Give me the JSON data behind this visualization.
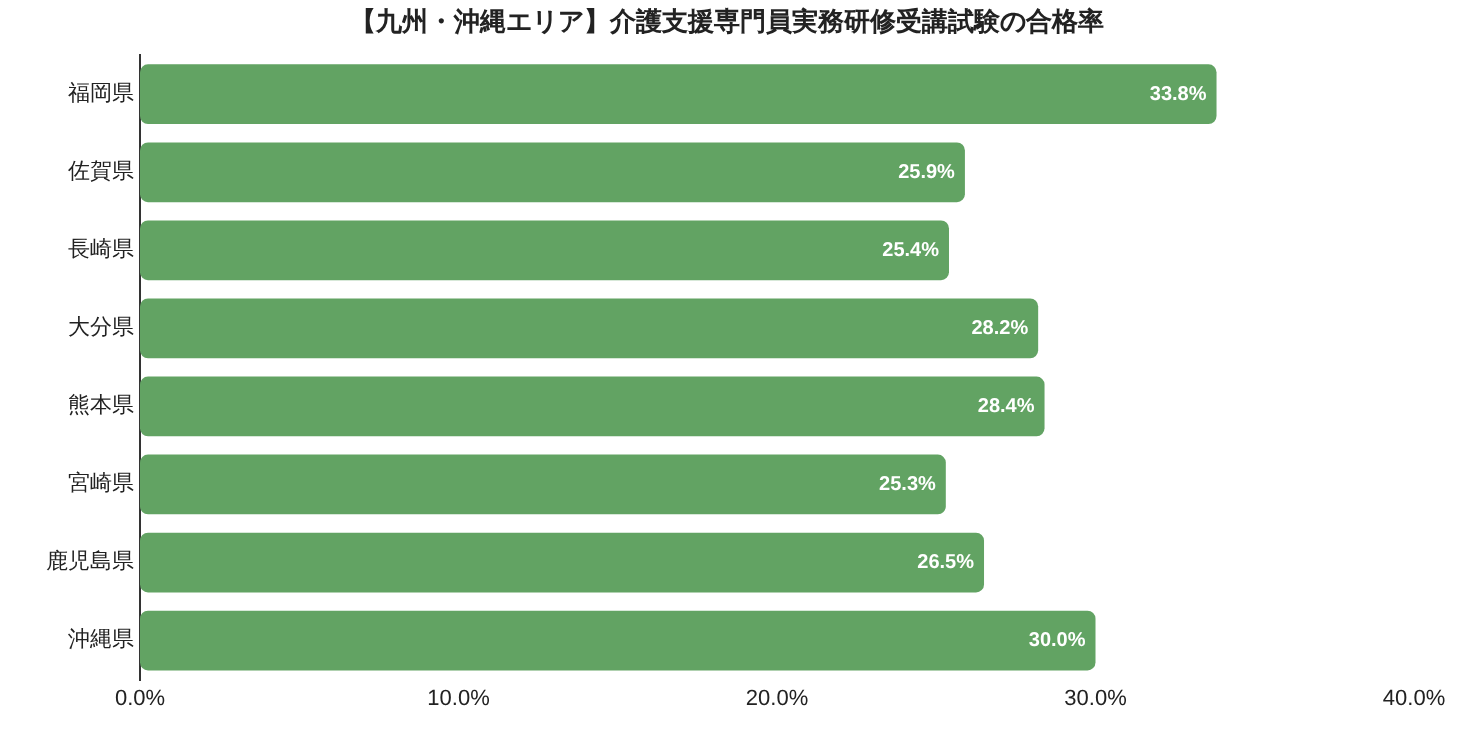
{
  "chart_data": {
    "type": "bar",
    "orientation": "horizontal",
    "title": "【九州・沖縄エリア】介護支援専門員実務研修受講試験の合格率",
    "categories": [
      "福岡県",
      "佐賀県",
      "長崎県",
      "大分県",
      "熊本県",
      "宮崎県",
      "鹿児島県",
      "沖縄県"
    ],
    "values": [
      33.8,
      25.9,
      25.4,
      28.2,
      28.4,
      25.3,
      26.5,
      30.0
    ],
    "value_labels": [
      "33.8%",
      "25.9%",
      "25.4%",
      "28.2%",
      "28.4%",
      "25.3%",
      "26.5%",
      "30.0%"
    ],
    "color": "#62a363",
    "xlim": [
      0,
      40
    ],
    "xticks": [
      {
        "value": 0,
        "label": "0.0%"
      },
      {
        "value": 10,
        "label": "10.0%"
      },
      {
        "value": 20,
        "label": "20.0%"
      },
      {
        "value": 30,
        "label": "30.0%"
      },
      {
        "value": 40,
        "label": "40.0%"
      }
    ],
    "grid": false,
    "legend": false
  }
}
